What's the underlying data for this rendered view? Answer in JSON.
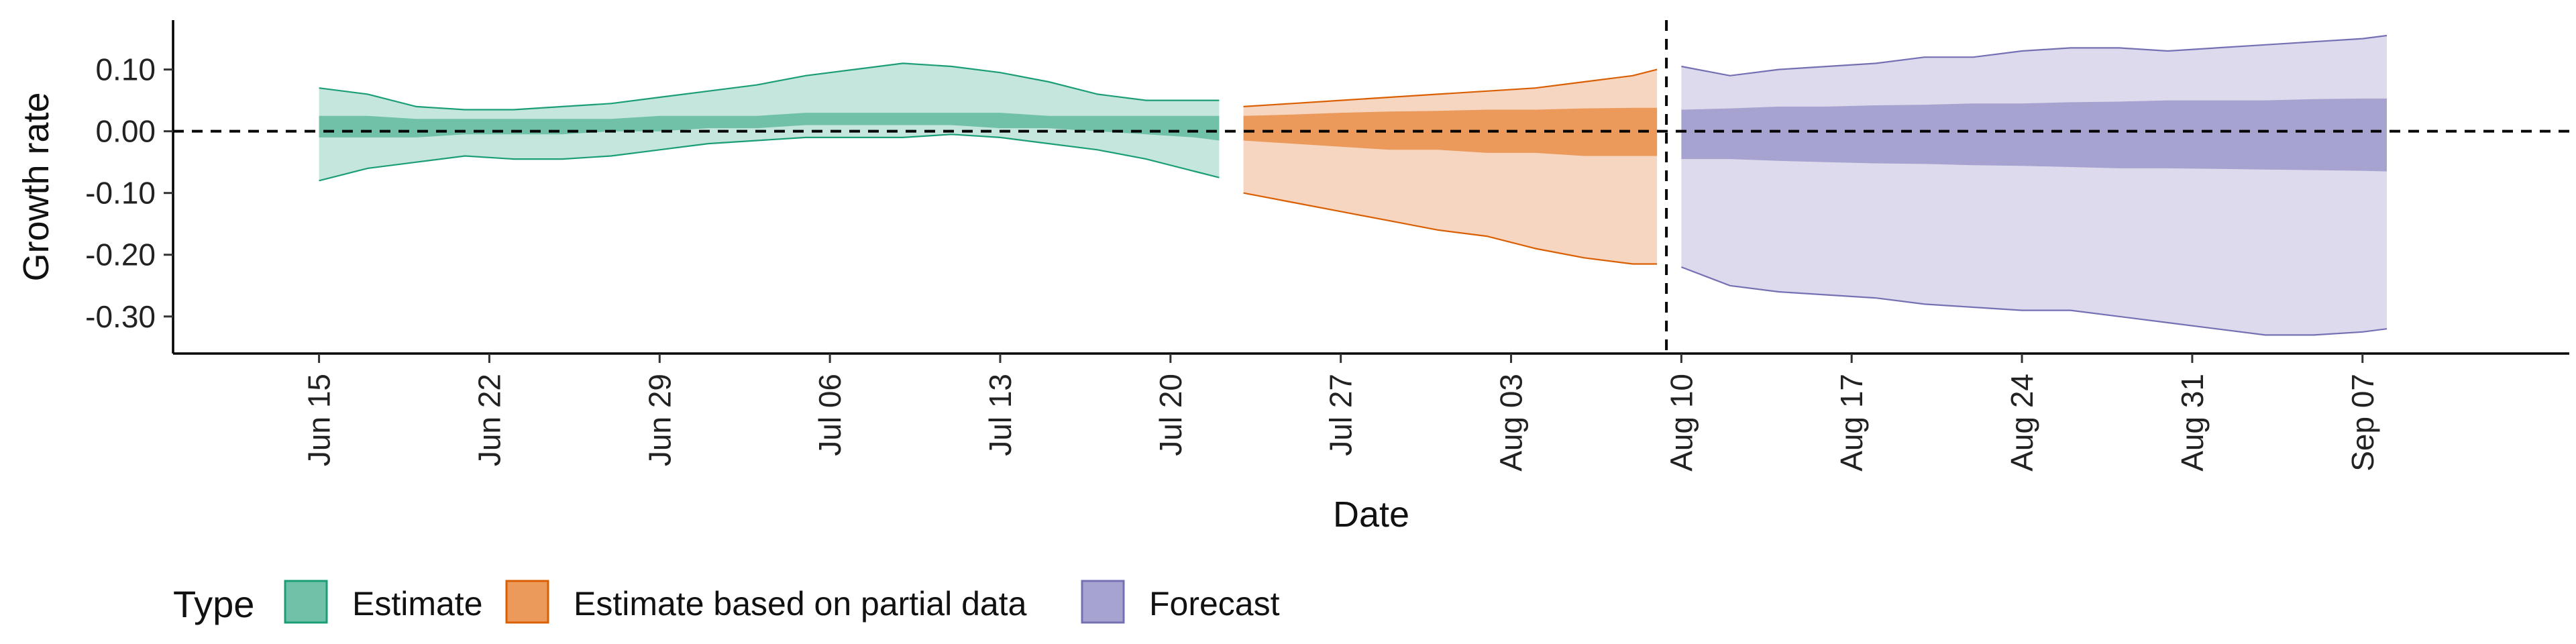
{
  "chart_data": {
    "type": "area",
    "title": "",
    "xlabel": "Date",
    "ylabel": "Growth rate",
    "ylim": [
      -0.36,
      0.18
    ],
    "xlim_days": [
      -6,
      84
    ],
    "x_origin": "Jun 15",
    "grid": false,
    "y_ticks": [
      0.1,
      0.0,
      -0.1,
      -0.2,
      -0.3
    ],
    "y_tick_labels": [
      "0.10",
      "0.00",
      "-0.10",
      "-0.20",
      "-0.30"
    ],
    "x_ticks_days": [
      0,
      7,
      14,
      21,
      28,
      35,
      42,
      49,
      56,
      63,
      70,
      77,
      84
    ],
    "x_tick_labels": [
      "Jun 15",
      "Jun 22",
      "Jun 29",
      "Jul 06",
      "Jul 13",
      "Jul 20",
      "Jul 27",
      "Aug 03",
      "Aug 10",
      "Aug 17",
      "Aug 24",
      "Aug 31",
      "Sep 07"
    ],
    "reference_lines": {
      "horizontal_y": 0.0,
      "vertical_day": 55
    },
    "legend": {
      "title": "Type",
      "position": "bottom-left",
      "items": [
        {
          "label": "Estimate",
          "fill": "#70c1a8",
          "stroke": "#1b9e77"
        },
        {
          "label": "Estimate based on partial data",
          "fill": "#eb9a5b",
          "stroke": "#d95f02"
        },
        {
          "label": "Forecast",
          "fill": "#a7a3d1",
          "stroke": "#7570b3"
        }
      ]
    },
    "series": [
      {
        "name": "Estimate",
        "color": "#1b9e77",
        "outer_fill": "#c5e6dc",
        "inner_fill": "#70c1a8",
        "x_days": [
          0,
          2,
          4,
          6,
          8,
          10,
          12,
          14,
          16,
          18,
          20,
          22,
          24,
          26,
          28,
          30,
          32,
          34,
          36,
          37
        ],
        "lower90": [
          -0.08,
          -0.06,
          -0.05,
          -0.04,
          -0.045,
          -0.045,
          -0.04,
          -0.03,
          -0.02,
          -0.015,
          -0.01,
          -0.01,
          -0.01,
          -0.005,
          -0.01,
          -0.02,
          -0.03,
          -0.045,
          -0.065,
          -0.075
        ],
        "upper90": [
          0.07,
          0.06,
          0.04,
          0.035,
          0.035,
          0.04,
          0.045,
          0.055,
          0.065,
          0.075,
          0.09,
          0.1,
          0.11,
          0.105,
          0.095,
          0.08,
          0.06,
          0.05,
          0.05,
          0.05
        ],
        "lower50": [
          -0.01,
          -0.01,
          -0.01,
          -0.005,
          -0.005,
          -0.005,
          0.0,
          0.0,
          0.005,
          0.005,
          0.01,
          0.01,
          0.01,
          0.01,
          0.005,
          0.005,
          0.0,
          -0.005,
          -0.01,
          -0.015
        ],
        "upper50": [
          0.025,
          0.025,
          0.02,
          0.02,
          0.02,
          0.02,
          0.02,
          0.025,
          0.025,
          0.025,
          0.03,
          0.03,
          0.03,
          0.03,
          0.03,
          0.025,
          0.025,
          0.025,
          0.025,
          0.025
        ]
      },
      {
        "name": "Estimate based on partial data",
        "color": "#d95f02",
        "outer_fill": "#f6d6c0",
        "inner_fill": "#eb9a5b",
        "x_days": [
          38,
          40,
          42,
          44,
          46,
          48,
          50,
          52,
          54,
          55
        ],
        "lower90": [
          -0.1,
          -0.115,
          -0.13,
          -0.145,
          -0.16,
          -0.17,
          -0.19,
          -0.205,
          -0.215,
          -0.215
        ],
        "upper90": [
          0.04,
          0.045,
          0.05,
          0.055,
          0.06,
          0.065,
          0.07,
          0.08,
          0.09,
          0.1
        ],
        "lower50": [
          -0.015,
          -0.02,
          -0.025,
          -0.03,
          -0.03,
          -0.035,
          -0.035,
          -0.04,
          -0.04,
          -0.04
        ],
        "upper50": [
          0.025,
          0.027,
          0.03,
          0.032,
          0.033,
          0.035,
          0.035,
          0.037,
          0.038,
          0.038
        ]
      },
      {
        "name": "Forecast",
        "color": "#7570b3",
        "outer_fill": "#dcdaec",
        "inner_fill": "#a7a3d1",
        "x_days": [
          56,
          58,
          60,
          62,
          64,
          66,
          68,
          70,
          72,
          74,
          76,
          78,
          80,
          82,
          84,
          85
        ],
        "lower90": [
          -0.22,
          -0.25,
          -0.26,
          -0.265,
          -0.27,
          -0.28,
          -0.285,
          -0.29,
          -0.29,
          -0.3,
          -0.31,
          -0.32,
          -0.33,
          -0.33,
          -0.325,
          -0.32
        ],
        "upper90": [
          0.105,
          0.09,
          0.1,
          0.105,
          0.11,
          0.12,
          0.12,
          0.13,
          0.135,
          0.135,
          0.13,
          0.135,
          0.14,
          0.145,
          0.15,
          0.155
        ],
        "lower50": [
          -0.045,
          -0.045,
          -0.048,
          -0.05,
          -0.052,
          -0.053,
          -0.055,
          -0.056,
          -0.058,
          -0.06,
          -0.06,
          -0.061,
          -0.062,
          -0.063,
          -0.064,
          -0.065
        ],
        "upper50": [
          0.035,
          0.037,
          0.04,
          0.04,
          0.042,
          0.043,
          0.045,
          0.045,
          0.047,
          0.048,
          0.05,
          0.05,
          0.05,
          0.052,
          0.053,
          0.053
        ]
      }
    ]
  }
}
